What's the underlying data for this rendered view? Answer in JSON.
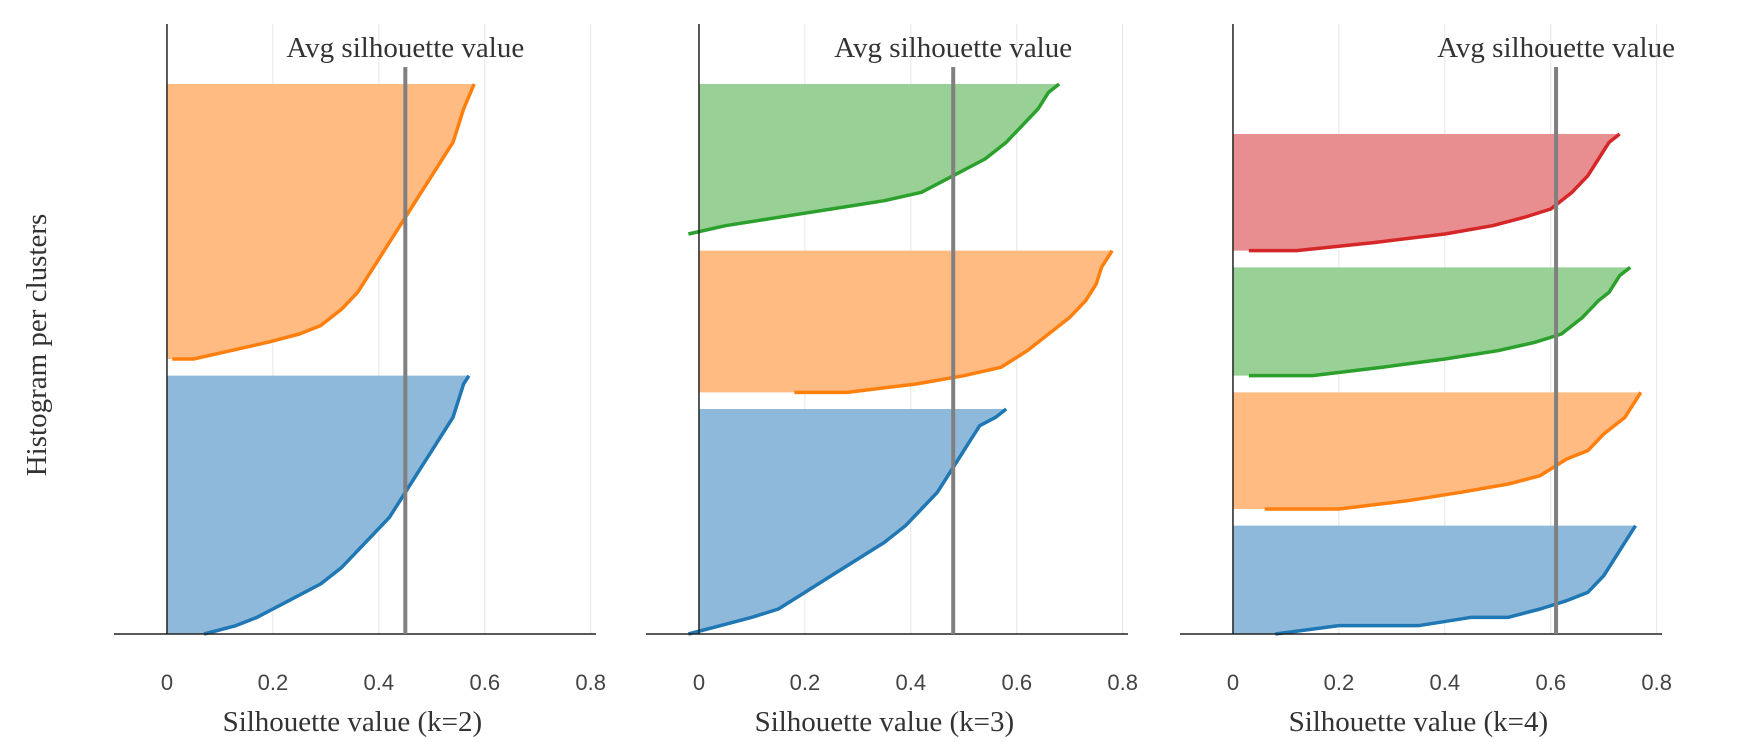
{
  "y_title": "Histogram per clusters",
  "colors": {
    "blue": "#1f77b4",
    "blue_fill": "#8fb9da",
    "orange": "#ff7f0e",
    "orange_fill": "#ffbb82",
    "green": "#2ca02c",
    "green_fill": "#98d095",
    "red": "#d62728",
    "red_fill": "#e88e90",
    "avg_line": "#808080"
  },
  "chart_data": [
    {
      "type": "area",
      "xlabel": "Silhouette value (k=2)",
      "annotation": "Avg silhouette value",
      "avg_silhouette": 0.45,
      "xlim": [
        -0.1,
        0.81
      ],
      "ticks": [
        0,
        0.2,
        0.4,
        0.6,
        0.8
      ],
      "tick_labels": [
        "0",
        "0.2",
        "0.4",
        "0.6",
        "0.8"
      ],
      "grid": true,
      "clusters": [
        {
          "name": "",
          "color": "blue",
          "ylim": [
            0,
            0.31
          ],
          "x": [
            0.07,
            0.13,
            0.17,
            0.2,
            0.23,
            0.26,
            0.29,
            0.33,
            0.36,
            0.39,
            0.42,
            0.44,
            0.46,
            0.48,
            0.5,
            0.52,
            0.54,
            0.55,
            0.56,
            0.57
          ],
          "y": [
            0.0,
            0.01,
            0.02,
            0.03,
            0.04,
            0.05,
            0.06,
            0.08,
            0.1,
            0.12,
            0.14,
            0.16,
            0.18,
            0.2,
            0.22,
            0.24,
            0.26,
            0.28,
            0.3,
            0.31
          ]
        },
        {
          "name": "",
          "color": "orange",
          "ylim": [
            0.33,
            0.66
          ],
          "x": [
            0.01,
            0.05,
            0.12,
            0.19,
            0.25,
            0.29,
            0.33,
            0.36,
            0.38,
            0.4,
            0.42,
            0.44,
            0.46,
            0.48,
            0.5,
            0.52,
            0.54,
            0.55,
            0.56,
            0.58
          ],
          "y": [
            0.33,
            0.33,
            0.34,
            0.35,
            0.36,
            0.37,
            0.39,
            0.41,
            0.43,
            0.45,
            0.47,
            0.49,
            0.51,
            0.53,
            0.55,
            0.57,
            0.59,
            0.61,
            0.63,
            0.66
          ]
        }
      ]
    },
    {
      "type": "area",
      "xlabel": "Silhouette value (k=3)",
      "annotation": "Avg silhouette value",
      "avg_silhouette": 0.48,
      "xlim": [
        -0.1,
        0.81
      ],
      "ticks": [
        0,
        0.2,
        0.4,
        0.6,
        0.8
      ],
      "tick_labels": [
        "0",
        "0.2",
        "0.4",
        "0.6",
        "0.8"
      ],
      "grid": true,
      "clusters": [
        {
          "name": "",
          "color": "blue",
          "ylim": [
            0,
            0.27
          ],
          "x": [
            -0.02,
            0.04,
            0.1,
            0.15,
            0.2,
            0.25,
            0.3,
            0.35,
            0.39,
            0.42,
            0.45,
            0.47,
            0.49,
            0.51,
            0.53,
            0.56,
            0.58
          ],
          "y": [
            0.0,
            0.01,
            0.02,
            0.03,
            0.05,
            0.07,
            0.09,
            0.11,
            0.13,
            0.15,
            0.17,
            0.19,
            0.21,
            0.23,
            0.25,
            0.26,
            0.27
          ]
        },
        {
          "name": "",
          "color": "orange",
          "ylim": [
            0.29,
            0.46
          ],
          "x": [
            0.18,
            0.28,
            0.41,
            0.5,
            0.57,
            0.62,
            0.66,
            0.7,
            0.73,
            0.75,
            0.76,
            0.78
          ],
          "y": [
            0.29,
            0.29,
            0.3,
            0.31,
            0.32,
            0.34,
            0.36,
            0.38,
            0.4,
            0.42,
            0.44,
            0.46
          ]
        },
        {
          "name": "",
          "color": "green",
          "ylim": [
            0.48,
            0.66
          ],
          "x": [
            -0.02,
            0.05,
            0.15,
            0.25,
            0.35,
            0.42,
            0.48,
            0.54,
            0.58,
            0.61,
            0.64,
            0.66,
            0.68
          ],
          "y": [
            0.48,
            0.49,
            0.5,
            0.51,
            0.52,
            0.53,
            0.55,
            0.57,
            0.59,
            0.61,
            0.63,
            0.65,
            0.66
          ]
        }
      ]
    },
    {
      "type": "area",
      "xlabel": "Silhouette value (k=4)",
      "annotation": "Avg silhouette value",
      "avg_silhouette": 0.61,
      "xlim": [
        -0.1,
        0.81
      ],
      "ticks": [
        0,
        0.2,
        0.4,
        0.6,
        0.8
      ],
      "tick_labels": [
        "0",
        "0.2",
        "0.4",
        "0.6",
        "0.8"
      ],
      "grid": true,
      "clusters": [
        {
          "name": "",
          "color": "blue",
          "ylim": [
            0,
            0.13
          ],
          "x": [
            0.08,
            0.2,
            0.35,
            0.45,
            0.52,
            0.58,
            0.63,
            0.67,
            0.7,
            0.72,
            0.74,
            0.76
          ],
          "y": [
            0.0,
            0.01,
            0.01,
            0.02,
            0.02,
            0.03,
            0.04,
            0.05,
            0.07,
            0.09,
            0.11,
            0.13
          ]
        },
        {
          "name": "",
          "color": "orange",
          "ylim": [
            0.15,
            0.29
          ],
          "x": [
            0.06,
            0.2,
            0.33,
            0.43,
            0.52,
            0.58,
            0.63,
            0.67,
            0.7,
            0.72,
            0.74,
            0.76,
            0.77
          ],
          "y": [
            0.15,
            0.15,
            0.16,
            0.17,
            0.18,
            0.19,
            0.21,
            0.22,
            0.24,
            0.25,
            0.26,
            0.28,
            0.29
          ]
        },
        {
          "name": "",
          "color": "green",
          "ylim": [
            0.31,
            0.44
          ],
          "x": [
            0.03,
            0.15,
            0.28,
            0.4,
            0.5,
            0.57,
            0.62,
            0.66,
            0.69,
            0.71,
            0.73,
            0.75
          ],
          "y": [
            0.31,
            0.31,
            0.32,
            0.33,
            0.34,
            0.35,
            0.36,
            0.38,
            0.4,
            0.41,
            0.43,
            0.44
          ]
        },
        {
          "name": "",
          "color": "red",
          "ylim": [
            0.46,
            0.6
          ],
          "x": [
            0.03,
            0.12,
            0.27,
            0.4,
            0.49,
            0.55,
            0.6,
            0.64,
            0.67,
            0.69,
            0.71,
            0.73
          ],
          "y": [
            0.46,
            0.46,
            0.47,
            0.48,
            0.49,
            0.5,
            0.51,
            0.53,
            0.55,
            0.57,
            0.59,
            0.6
          ]
        }
      ]
    }
  ]
}
